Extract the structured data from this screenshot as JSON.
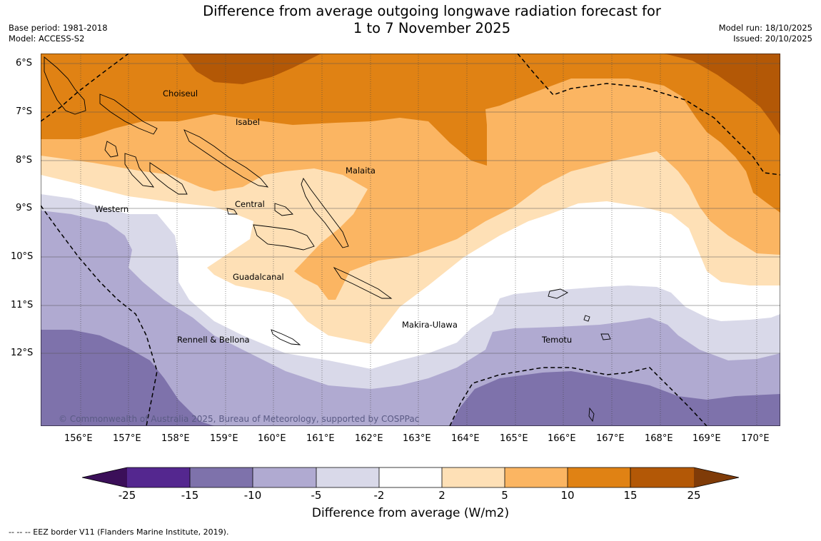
{
  "title": {
    "line1": "Difference from average outgoing longwave radiation forecast for",
    "line2": "1 to 7 November 2025"
  },
  "meta_left": {
    "base_period": "Base period: 1981-2018",
    "model": "Model: ACCESS-S2"
  },
  "meta_right": {
    "model_run": "Model run: 18/10/2025",
    "issued": "Issued: 20/10/2025"
  },
  "map": {
    "lon_labels": [
      "156°E",
      "157°E",
      "158°E",
      "159°E",
      "160°E",
      "161°E",
      "162°E",
      "163°E",
      "164°E",
      "165°E",
      "166°E",
      "167°E",
      "168°E",
      "169°E",
      "170°E"
    ],
    "lat_labels": [
      "6°S",
      "7°S",
      "8°S",
      "9°S",
      "10°S",
      "11°S",
      "12°S"
    ],
    "places": [
      {
        "id": "choiseul",
        "name": "Choiseul"
      },
      {
        "id": "isabel",
        "name": "Isabel"
      },
      {
        "id": "malaita",
        "name": "Malaita"
      },
      {
        "id": "central",
        "name": "Central"
      },
      {
        "id": "western",
        "name": "Western"
      },
      {
        "id": "guadalcanal",
        "name": "Guadalcanal"
      },
      {
        "id": "makira",
        "name": "Makira-Ulawa"
      },
      {
        "id": "temotu",
        "name": "Temotu"
      },
      {
        "id": "rennell",
        "name": "Rennell & Bellona"
      }
    ],
    "copyright": "© Commonwealth of Australia 2025, Bureau of Meteorology, supported by COSPPac"
  },
  "colorbar": {
    "levels": [
      "-25",
      "-15",
      "-10",
      "-5",
      "-2",
      "2",
      "5",
      "10",
      "15",
      "25"
    ],
    "colors": {
      "lt_m25": "#3b0f59",
      "m25_m15": "#54278f",
      "m15_m10": "#7e72ab",
      "m10_m5": "#b0aad1",
      "m5_m2": "#d9d9e9",
      "m2_2": "#ffffff",
      "p2_5": "#fee0b6",
      "p5_10": "#fbb562",
      "p10_15": "#e08214",
      "p15_25": "#b35806",
      "gt_25": "#7f3b08"
    },
    "label": "Difference from average (W/m2)"
  },
  "eez_note": "-- -- -- EEZ border V11 (Flanders Marine Institute, 2019)."
}
